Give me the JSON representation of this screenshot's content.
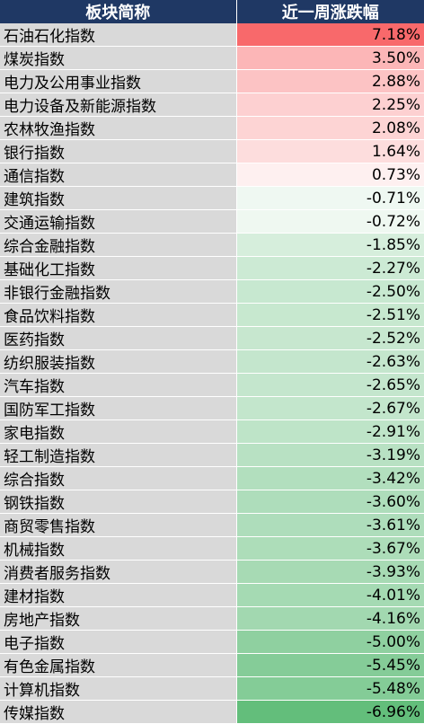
{
  "header": {
    "col_name": "板块简称",
    "col_change": "近一周涨跌幅"
  },
  "rows": [
    {
      "name": "石油石化指数",
      "change": "7.18%",
      "value": 7.18
    },
    {
      "name": "煤炭指数",
      "change": "3.50%",
      "value": 3.5
    },
    {
      "name": "电力及公用事业指数",
      "change": "2.88%",
      "value": 2.88
    },
    {
      "name": "电力设备及新能源指数",
      "change": "2.25%",
      "value": 2.25
    },
    {
      "name": "农林牧渔指数",
      "change": "2.08%",
      "value": 2.08
    },
    {
      "name": "银行指数",
      "change": "1.64%",
      "value": 1.64
    },
    {
      "name": "通信指数",
      "change": "0.73%",
      "value": 0.73
    },
    {
      "name": "建筑指数",
      "change": "-0.71%",
      "value": -0.71
    },
    {
      "name": "交通运输指数",
      "change": "-0.72%",
      "value": -0.72
    },
    {
      "name": "综合金融指数",
      "change": "-1.85%",
      "value": -1.85
    },
    {
      "name": "基础化工指数",
      "change": "-2.27%",
      "value": -2.27
    },
    {
      "name": "非银行金融指数",
      "change": "-2.50%",
      "value": -2.5
    },
    {
      "name": "食品饮料指数",
      "change": "-2.51%",
      "value": -2.51
    },
    {
      "name": "医药指数",
      "change": "-2.52%",
      "value": -2.52
    },
    {
      "name": "纺织服装指数",
      "change": "-2.63%",
      "value": -2.63
    },
    {
      "name": "汽车指数",
      "change": "-2.65%",
      "value": -2.65
    },
    {
      "name": "国防军工指数",
      "change": "-2.67%",
      "value": -2.67
    },
    {
      "name": "家电指数",
      "change": "-2.91%",
      "value": -2.91
    },
    {
      "name": "轻工制造指数",
      "change": "-3.19%",
      "value": -3.19
    },
    {
      "name": "综合指数",
      "change": "-3.42%",
      "value": -3.42
    },
    {
      "name": "钢铁指数",
      "change": "-3.60%",
      "value": -3.6
    },
    {
      "name": "商贸零售指数",
      "change": "-3.61%",
      "value": -3.61
    },
    {
      "name": "机械指数",
      "change": "-3.67%",
      "value": -3.67
    },
    {
      "name": "消费者服务指数",
      "change": "-3.93%",
      "value": -3.93
    },
    {
      "name": "建材指数",
      "change": "-4.01%",
      "value": -4.01
    },
    {
      "name": "房地产指数",
      "change": "-4.16%",
      "value": -4.16
    },
    {
      "name": "电子指数",
      "change": "-5.00%",
      "value": -5.0
    },
    {
      "name": "有色金属指数",
      "change": "-5.45%",
      "value": -5.45
    },
    {
      "name": "计算机指数",
      "change": "-5.48%",
      "value": -5.48
    },
    {
      "name": "传媒指数",
      "change": "-6.96%",
      "value": -6.96
    }
  ],
  "colors": {
    "header_bg": "#1f3864",
    "positive_max": "#f8696b",
    "negative_max": "#63be7b",
    "neutral": "#ffffff",
    "name_bg": "#d9d9d9"
  }
}
